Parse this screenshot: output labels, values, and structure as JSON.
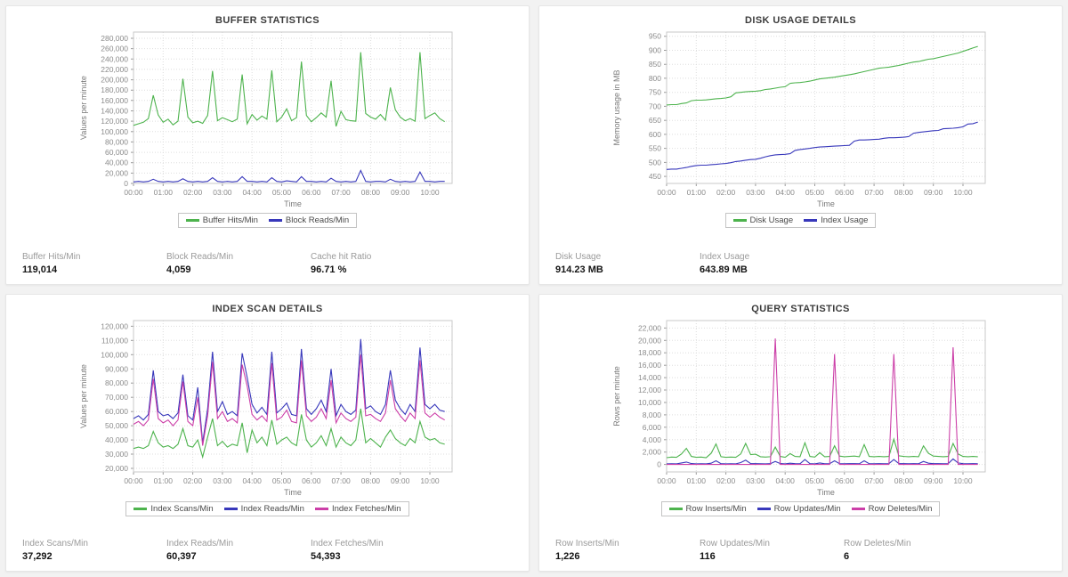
{
  "panels": [
    {
      "title": "BUFFER STATISTICS",
      "stats": [
        {
          "label": "Buffer Hits/Min",
          "value": "119,014"
        },
        {
          "label": "Block Reads/Min",
          "value": "4,059"
        },
        {
          "label": "Cache hit Ratio",
          "value": "96.71 %"
        }
      ],
      "chart_data": {
        "type": "line",
        "ylabel": "Values per minute",
        "xlabel": "Time",
        "ylim": [
          0,
          292000
        ],
        "yticks": {
          "start": 0,
          "end": 280000,
          "step": 20000
        },
        "xlim_minutes": [
          0,
          645
        ],
        "x_step_minutes": 10,
        "x_ticks": [
          "00:00",
          "01:00",
          "02:00",
          "03:00",
          "04:00",
          "05:00",
          "06:00",
          "07:00",
          "08:00",
          "09:00",
          "10:00"
        ],
        "grid": true,
        "legend_position": "bottom",
        "series": [
          {
            "name": "Buffer Hits/Min",
            "color": "#4db34d",
            "values": [
              112000,
              115000,
              118000,
              125000,
              170000,
              132000,
              118000,
              124000,
              113000,
              120000,
              202000,
              128000,
              117000,
              120000,
              116000,
              131000,
              217000,
              121000,
              127000,
              123000,
              119000,
              124000,
              210000,
              115000,
              133000,
              122000,
              130000,
              124000,
              218000,
              119000,
              128000,
              144000,
              121000,
              127000,
              235000,
              131000,
              119000,
              127000,
              136000,
              128000,
              198000,
              110000,
              139000,
              123000,
              121000,
              120000,
              253000,
              135000,
              128000,
              124000,
              133000,
              122000,
              185000,
              142000,
              128000,
              121000,
              125000,
              120000,
              253000,
              125000,
              131000,
              136000,
              125000,
              119000
            ]
          },
          {
            "name": "Block Reads/Min",
            "color": "#3838bb",
            "values": [
              3000,
              4000,
              3000,
              4000,
              8000,
              4000,
              3000,
              4000,
              3000,
              4000,
              9000,
              4000,
              3000,
              4000,
              3000,
              4000,
              11000,
              4000,
              3000,
              4000,
              3000,
              4000,
              13000,
              4000,
              4000,
              3000,
              4000,
              3000,
              11000,
              4000,
              3000,
              5000,
              4000,
              3000,
              13000,
              4000,
              4000,
              3000,
              4000,
              3000,
              10000,
              4000,
              3000,
              4000,
              3000,
              4000,
              25000,
              4000,
              3000,
              4000,
              4000,
              3000,
              8000,
              4000,
              3000,
              4000,
              3000,
              4000,
              22000,
              4000,
              4000,
              3000,
              4000,
              4000
            ]
          }
        ]
      }
    },
    {
      "title": "DISK USAGE DETAILS",
      "stats": [
        {
          "label": "Disk Usage",
          "value": "914.23 MB"
        },
        {
          "label": "Index Usage",
          "value": "643.89 MB"
        }
      ],
      "chart_data": {
        "type": "line",
        "ylabel": "Memory usage in MB",
        "xlabel": "Time",
        "ylim": [
          425,
          965
        ],
        "yticks": {
          "start": 450,
          "end": 950,
          "step": 50
        },
        "xlim_minutes": [
          0,
          645
        ],
        "x_step_minutes": 10,
        "x_ticks": [
          "00:00",
          "01:00",
          "02:00",
          "03:00",
          "04:00",
          "05:00",
          "06:00",
          "07:00",
          "08:00",
          "09:00",
          "10:00"
        ],
        "grid": true,
        "legend_position": "bottom",
        "series": [
          {
            "name": "Disk Usage",
            "color": "#4db34d",
            "values": [
              705,
              706,
              706,
              710,
              712,
              720,
              722,
              722,
              723,
              725,
              727,
              728,
              730,
              734,
              748,
              750,
              752,
              753,
              754,
              756,
              760,
              762,
              765,
              768,
              770,
              782,
              784,
              785,
              787,
              790,
              794,
              798,
              800,
              802,
              804,
              807,
              810,
              813,
              816,
              820,
              824,
              828,
              832,
              836,
              838,
              840,
              843,
              846,
              850,
              854,
              858,
              860,
              864,
              868,
              870,
              874,
              878,
              882,
              886,
              890,
              896,
              902,
              908,
              914
            ]
          },
          {
            "name": "Index Usage",
            "color": "#3838bb",
            "values": [
              475,
              476,
              476,
              479,
              482,
              486,
              489,
              490,
              490,
              492,
              493,
              495,
              496,
              499,
              503,
              505,
              508,
              510,
              511,
              515,
              520,
              524,
              527,
              528,
              529,
              531,
              543,
              546,
              548,
              550,
              553,
              555,
              556,
              557,
              558,
              559,
              560,
              561,
              576,
              580,
              580,
              581,
              582,
              583,
              586,
              588,
              588,
              589,
              590,
              592,
              604,
              607,
              609,
              611,
              613,
              614,
              620,
              621,
              622,
              624,
              627,
              637,
              638,
              644
            ]
          }
        ]
      }
    },
    {
      "title": "INDEX SCAN DETAILS",
      "stats": [
        {
          "label": "Index Scans/Min",
          "value": "37,292"
        },
        {
          "label": "Index Reads/Min",
          "value": "60,397"
        },
        {
          "label": "Index Fetches/Min",
          "value": "54,393"
        }
      ],
      "chart_data": {
        "type": "line",
        "ylabel": "Values per minute",
        "xlabel": "Time",
        "ylim": [
          17500,
          124000
        ],
        "yticks": {
          "start": 20000,
          "end": 120000,
          "step": 10000
        },
        "xlim_minutes": [
          0,
          645
        ],
        "x_step_minutes": 10,
        "x_ticks": [
          "00:00",
          "01:00",
          "02:00",
          "03:00",
          "04:00",
          "05:00",
          "06:00",
          "07:00",
          "08:00",
          "09:00",
          "10:00"
        ],
        "grid": true,
        "legend_position": "bottom",
        "series": [
          {
            "name": "Index Scans/Min",
            "color": "#4db34d",
            "values": [
              34000,
              35000,
              34000,
              36000,
              46000,
              38000,
              35000,
              36000,
              34000,
              37000,
              48000,
              36000,
              35000,
              40000,
              28000,
              42000,
              55000,
              36000,
              39000,
              35000,
              37000,
              36000,
              52000,
              31000,
              47000,
              38000,
              42000,
              36000,
              54000,
              37000,
              40000,
              42000,
              38000,
              36000,
              58000,
              40000,
              35000,
              38000,
              43000,
              36000,
              48000,
              35000,
              42000,
              38000,
              36000,
              40000,
              62000,
              38000,
              41000,
              38000,
              35000,
              42000,
              47000,
              41000,
              38000,
              36000,
              41000,
              38000,
              53000,
              42000,
              40000,
              41000,
              38000,
              37000
            ]
          },
          {
            "name": "Index Reads/Min",
            "color": "#3838bb",
            "values": [
              55000,
              57000,
              54000,
              58000,
              89000,
              60000,
              57000,
              58000,
              55000,
              59000,
              86000,
              57000,
              54000,
              77000,
              38000,
              62000,
              102000,
              60000,
              67000,
              58000,
              60000,
              57000,
              101000,
              84000,
              65000,
              59000,
              63000,
              58000,
              102000,
              59000,
              62000,
              66000,
              58000,
              57000,
              104000,
              62000,
              58000,
              62000,
              68000,
              60000,
              90000,
              57000,
              65000,
              60000,
              58000,
              61000,
              111000,
              62000,
              64000,
              60000,
              58000,
              65000,
              89000,
              68000,
              62000,
              58000,
              65000,
              60000,
              105000,
              65000,
              62000,
              65000,
              61000,
              60000
            ]
          },
          {
            "name": "Index Fetches/Min",
            "color": "#cc3fa8",
            "values": [
              51000,
              53000,
              50000,
              54000,
              83000,
              55000,
              52000,
              54000,
              50000,
              54000,
              81000,
              53000,
              50000,
              70000,
              36000,
              57000,
              95000,
              55000,
              60000,
              53000,
              55000,
              52000,
              93000,
              78000,
              58000,
              54000,
              57000,
              53000,
              94000,
              54000,
              56000,
              61000,
              53000,
              52000,
              96000,
              57000,
              53000,
              56000,
              62000,
              55000,
              82000,
              52000,
              59000,
              55000,
              53000,
              56000,
              100000,
              57000,
              58000,
              55000,
              53000,
              59000,
              82000,
              62000,
              57000,
              53000,
              59000,
              55000,
              96000,
              59000,
              56000,
              59000,
              56000,
              54000
            ]
          }
        ]
      }
    },
    {
      "title": "QUERY STATISTICS",
      "stats": [
        {
          "label": "Row Inserts/Min",
          "value": "1,226"
        },
        {
          "label": "Row Updates/Min",
          "value": "116"
        },
        {
          "label": "Row Deletes/Min",
          "value": "6"
        }
      ],
      "chart_data": {
        "type": "line",
        "ylabel": "Rows per minute",
        "xlabel": "Time",
        "ylim": [
          -1200,
          23200
        ],
        "yticks": {
          "start": 0,
          "end": 22000,
          "step": 2000
        },
        "xlim_minutes": [
          0,
          645
        ],
        "x_step_minutes": 10,
        "x_ticks": [
          "00:00",
          "01:00",
          "02:00",
          "03:00",
          "04:00",
          "05:00",
          "06:00",
          "07:00",
          "08:00",
          "09:00",
          "10:00"
        ],
        "grid": true,
        "legend_position": "bottom",
        "series": [
          {
            "name": "Row Inserts/Min",
            "color": "#4db34d",
            "values": [
              1100,
              1200,
              1150,
              1700,
              2600,
              1300,
              1150,
              1200,
              1100,
              1800,
              3300,
              1250,
              1150,
              1200,
              1150,
              1700,
              3400,
              1600,
              1650,
              1250,
              1200,
              1250,
              2800,
              1300,
              1150,
              1750,
              1300,
              1250,
              3500,
              1300,
              1200,
              1900,
              1250,
              1300,
              3000,
              1350,
              1250,
              1300,
              1350,
              1250,
              3200,
              1300,
              1250,
              1300,
              1250,
              1300,
              4100,
              1400,
              1300,
              1250,
              1300,
              1250,
              3000,
              1800,
              1350,
              1300,
              1250,
              1300,
              3400,
              1700,
              1300,
              1250,
              1300,
              1250
            ]
          },
          {
            "name": "Row Updates/Min",
            "color": "#3838bb",
            "values": [
              100,
              120,
              110,
              250,
              400,
              150,
              110,
              120,
              100,
              200,
              600,
              130,
              110,
              120,
              110,
              300,
              700,
              150,
              130,
              120,
              110,
              130,
              500,
              150,
              110,
              200,
              130,
              120,
              800,
              130,
              110,
              250,
              120,
              130,
              600,
              140,
              120,
              130,
              140,
              120,
              600,
              130,
              120,
              130,
              120,
              130,
              800,
              150,
              130,
              120,
              130,
              120,
              500,
              200,
              140,
              130,
              120,
              130,
              900,
              250,
              130,
              120,
              130,
              120
            ]
          },
          {
            "name": "Row Deletes/Min",
            "color": "#cc3fa8",
            "values": [
              5,
              6,
              5,
              8,
              10,
              6,
              5,
              6,
              5,
              8,
              12,
              6,
              5,
              6,
              5,
              8,
              15,
              6,
              5,
              6,
              5,
              8,
              20300,
              10,
              6,
              8,
              6,
              5,
              12,
              6,
              5,
              8,
              6,
              5,
              17800,
              8,
              6,
              5,
              6,
              5,
              10,
              6,
              5,
              6,
              5,
              8,
              17800,
              10,
              6,
              5,
              6,
              5,
              12,
              8,
              6,
              5,
              6,
              5,
              18900,
              8,
              6,
              5,
              6,
              5
            ]
          }
        ]
      }
    }
  ]
}
